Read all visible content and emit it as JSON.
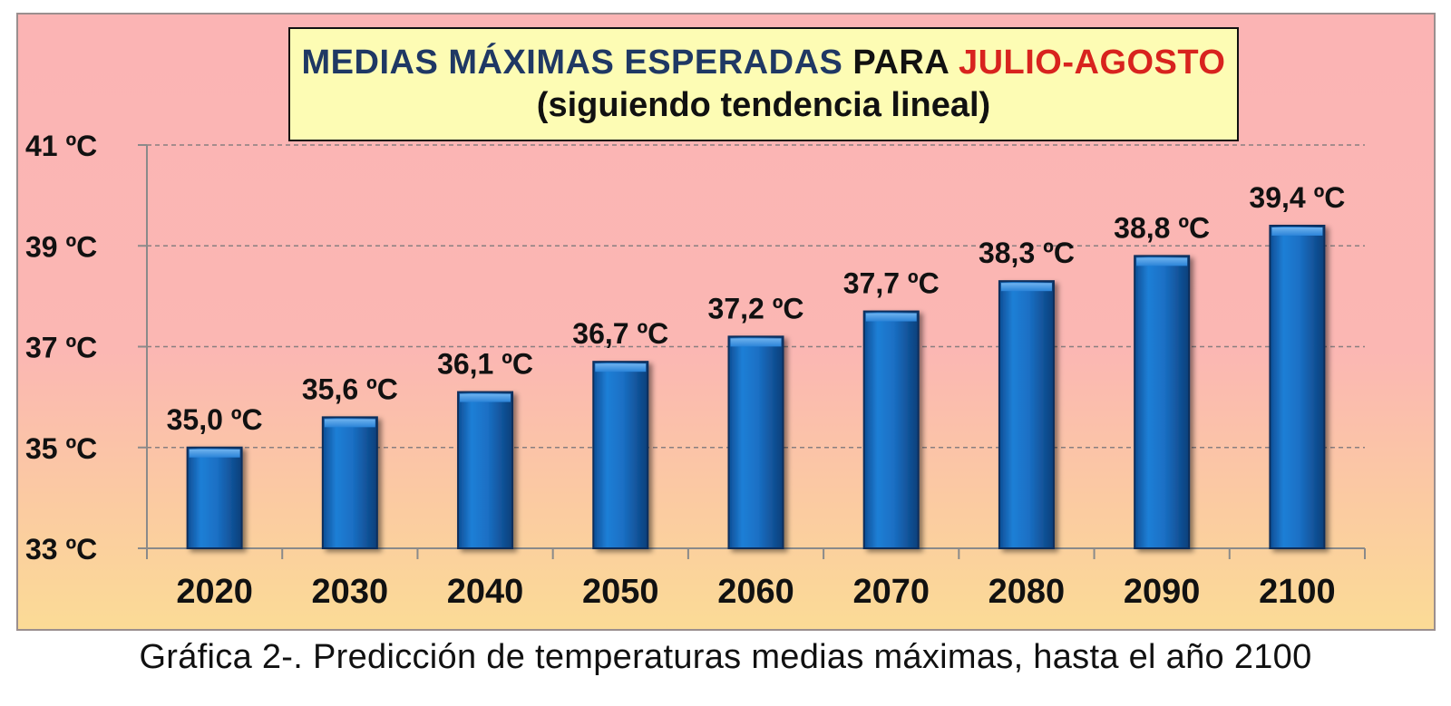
{
  "title": {
    "part1": "MEDIAS MÁXIMAS ESPERADAS",
    "part2": "PARA",
    "part3": "JULIO-AGOSTO",
    "line2": "(siguiendo tendencia lineal)"
  },
  "caption": "Gráfica 2-. Predicción de temperaturas medias máximas, hasta el año 2100",
  "colors": {
    "bar": "#1a6fc4",
    "title_navy": "#1f3864",
    "title_red": "#d8231e"
  },
  "chart_data": {
    "type": "bar",
    "title": "MEDIAS MÁXIMAS ESPERADAS PARA JULIO-AGOSTO (siguiendo tendencia lineal)",
    "xlabel": "",
    "ylabel": "",
    "categories": [
      "2020",
      "2030",
      "2040",
      "2050",
      "2060",
      "2070",
      "2080",
      "2090",
      "2100"
    ],
    "values": [
      35.0,
      35.6,
      36.1,
      36.7,
      37.2,
      37.7,
      38.3,
      38.8,
      39.4
    ],
    "data_labels": [
      "35,0 ºC",
      "35,6 ºC",
      "36,1 ºC",
      "36,7 ºC",
      "37,2 ºC",
      "37,7 ºC",
      "38,3 ºC",
      "38,8 ºC",
      "39,4 ºC"
    ],
    "ylim": [
      33,
      41
    ],
    "yticks": [
      33,
      35,
      37,
      39,
      41
    ],
    "ytick_labels": [
      "33 ºC",
      "35 ºC",
      "37 ºC",
      "39 ºC",
      "41 ºC"
    ],
    "grid": true,
    "legend": "none"
  }
}
